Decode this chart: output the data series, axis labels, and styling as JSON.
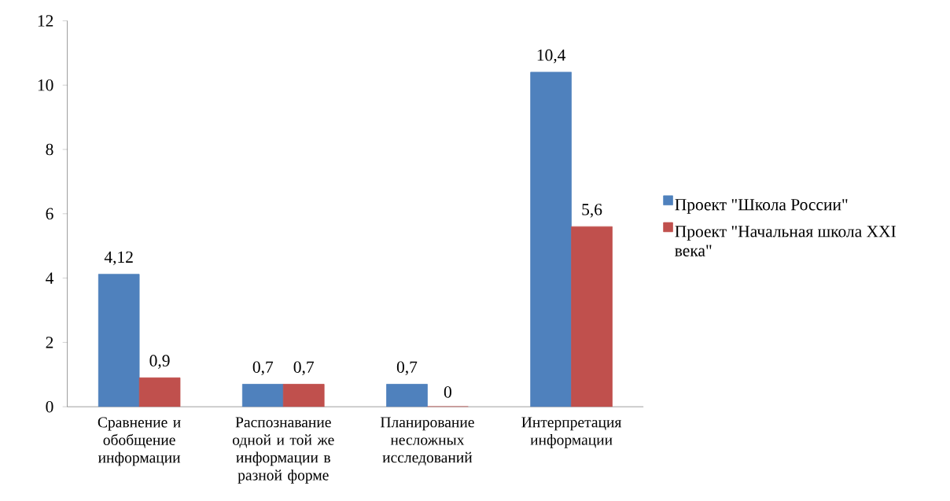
{
  "chart_data": {
    "type": "bar",
    "categories": [
      "Сравнение и обобщение информации",
      "Распознавание одной и той же информации в разной форме",
      "Планирование несложных исследований",
      "Интерпретация информации"
    ],
    "series": [
      {
        "name": "Проект \"Школа России\"",
        "color": "#4f81bd",
        "values": [
          4.12,
          0.7,
          0.7,
          10.4
        ],
        "value_labels": [
          "4,12",
          "0,7",
          "0,7",
          "10,4"
        ]
      },
      {
        "name": "Проект \"Начальная школа XXI века\"",
        "color": "#c0504d",
        "values": [
          0.9,
          0.7,
          0,
          5.6
        ],
        "value_labels": [
          "0,9",
          "0,7",
          "0",
          "5,6"
        ]
      }
    ],
    "ylim": [
      0,
      12
    ],
    "yticks": [
      0,
      2,
      4,
      6,
      8,
      10,
      12
    ],
    "grid": false,
    "legend": "right"
  }
}
